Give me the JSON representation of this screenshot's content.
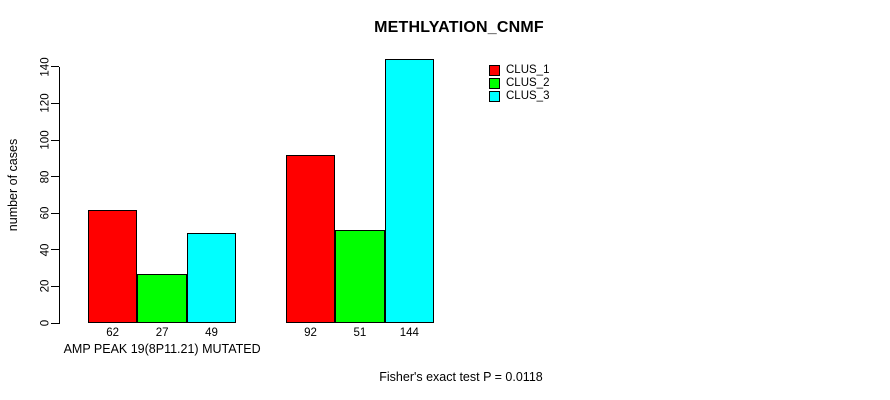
{
  "chart_data": {
    "type": "bar",
    "title": "METHLYATION_CNMF",
    "ylabel": "number of cases",
    "xlabel": "",
    "categories": [
      "AMP PEAK 19(8P11.21) MUTATED",
      ""
    ],
    "series": [
      {
        "name": "CLUS_1",
        "color": "#ff0000",
        "values": [
          62,
          92
        ]
      },
      {
        "name": "CLUS_2",
        "color": "#00ff00",
        "values": [
          27,
          51
        ]
      },
      {
        "name": "CLUS_3",
        "color": "#00ffff",
        "values": [
          49,
          144
        ]
      }
    ],
    "bar_value_labels": [
      [
        62,
        27,
        49
      ],
      [
        92,
        51,
        144
      ]
    ],
    "yticks": [
      0,
      20,
      40,
      60,
      80,
      100,
      120,
      140
    ],
    "ylim": [
      0,
      140
    ],
    "grid": false,
    "legend_position": "top-right",
    "footnote": "Fisher's exact test P = 0.0118",
    "axis_color": "#000000",
    "background_color": "#ffffff"
  }
}
